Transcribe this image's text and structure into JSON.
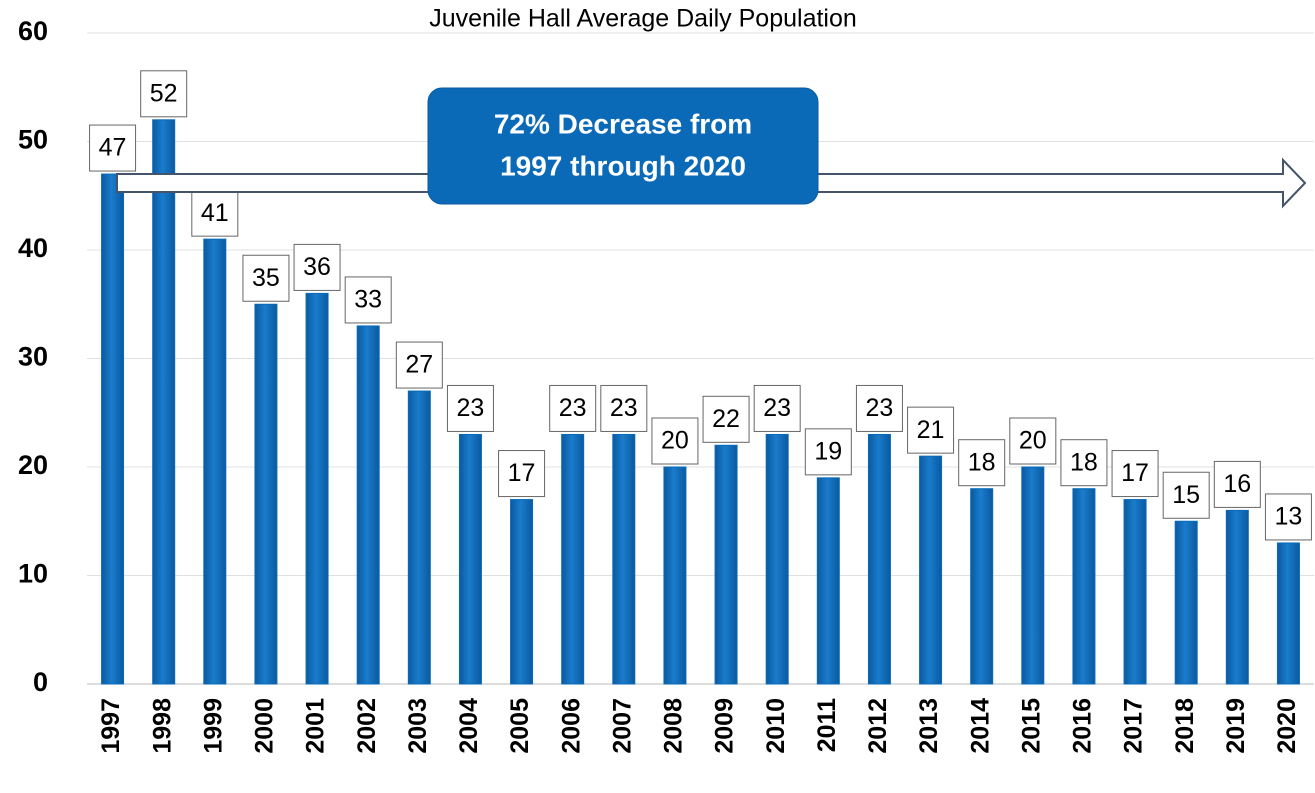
{
  "chart_data": {
    "type": "bar",
    "title": "Juvenile Hall Average Daily Population",
    "categories": [
      "1997",
      "1998",
      "1999",
      "2000",
      "2001",
      "2002",
      "2003",
      "2004",
      "2005",
      "2006",
      "2007",
      "2008",
      "2009",
      "2010",
      "2011",
      "2012",
      "2013",
      "2014",
      "2015",
      "2016",
      "2017",
      "2018",
      "2019",
      "2020"
    ],
    "values": [
      47,
      52,
      41,
      35,
      36,
      33,
      27,
      23,
      17,
      23,
      23,
      20,
      22,
      23,
      19,
      23,
      21,
      18,
      20,
      18,
      17,
      15,
      16,
      13
    ],
    "color": "#0a6ab8",
    "ylim": [
      0,
      60
    ],
    "yticks": [
      0,
      10,
      20,
      30,
      40,
      50,
      60
    ],
    "grid": true,
    "annotation": [
      "72% Decrease from",
      "1997 through 2020"
    ]
  }
}
